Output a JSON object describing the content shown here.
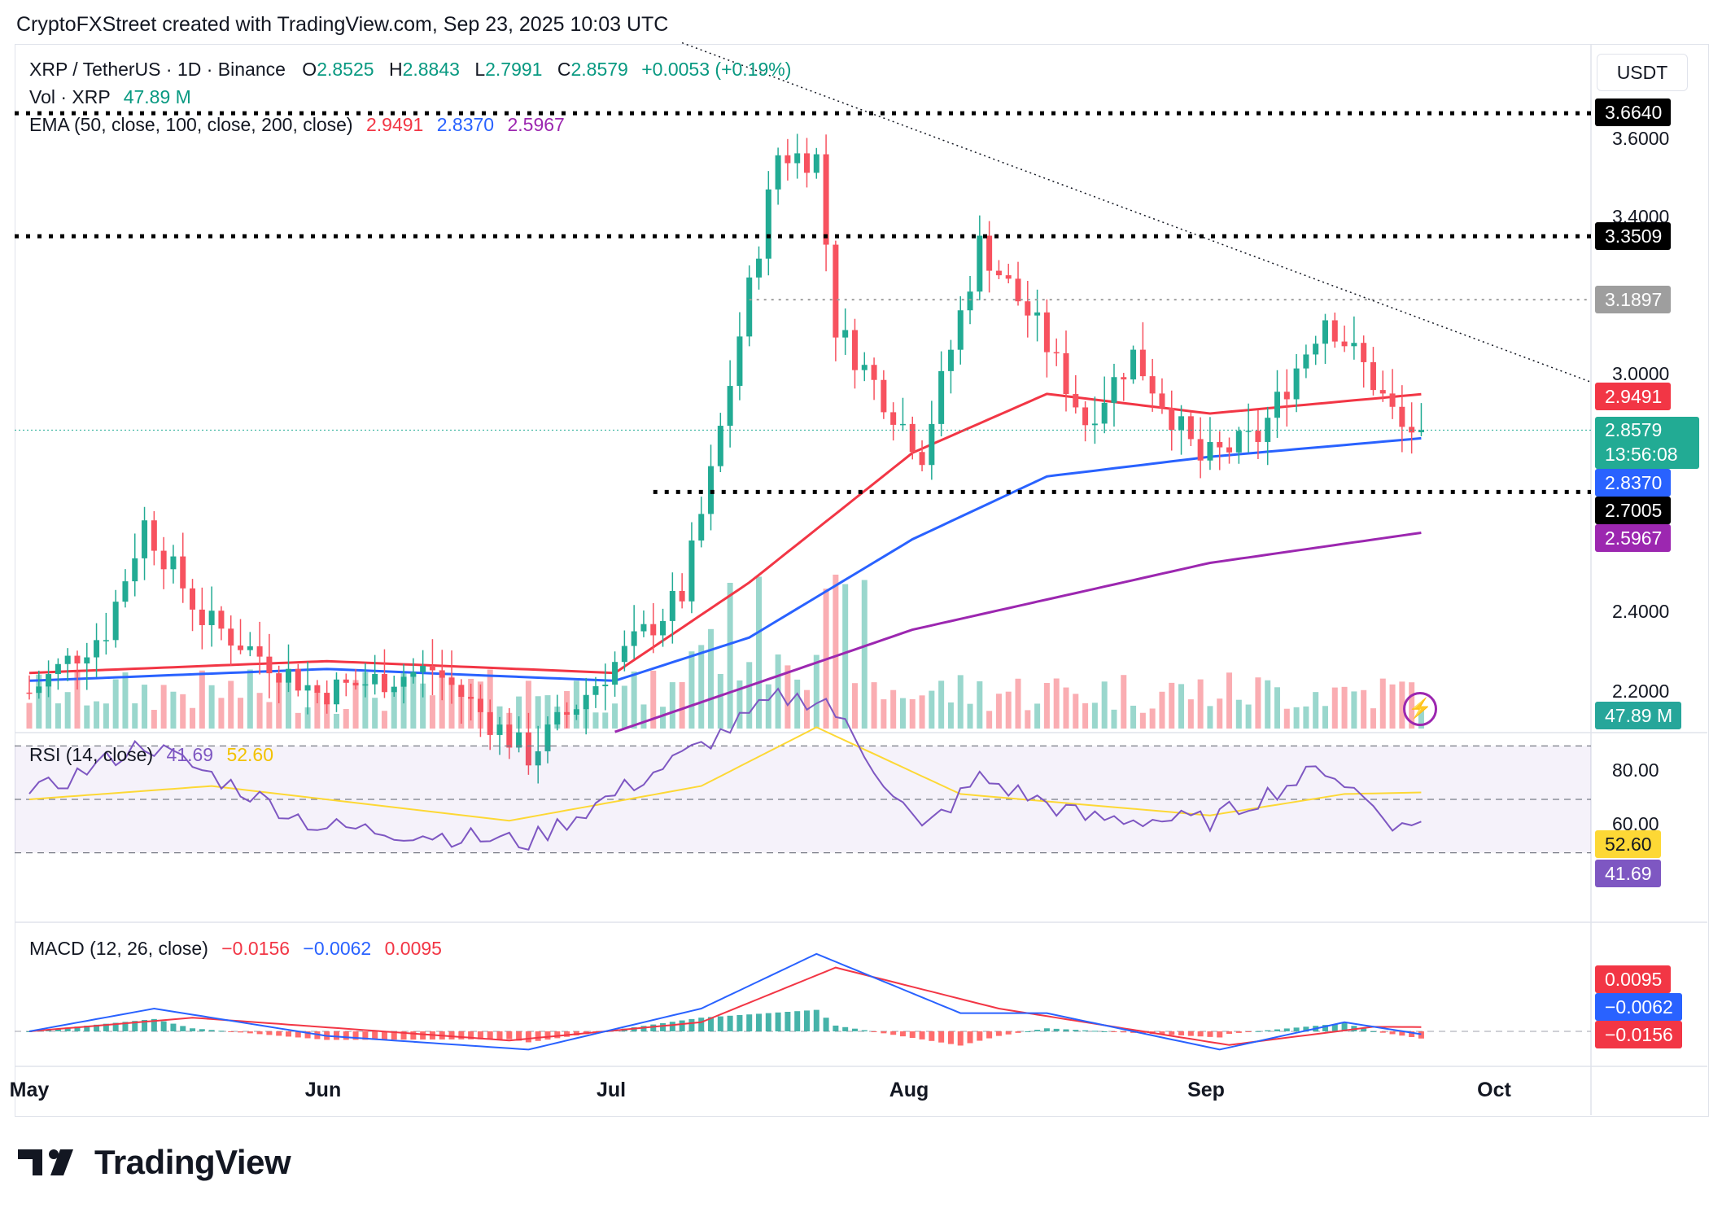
{
  "header": {
    "caption": "CryptoFXStreet created with TradingView.com, Sep 23, 2025 10:03 UTC"
  },
  "legend": {
    "symbol": "XRP / TetherUS · 1D · Binance",
    "o_label": "O",
    "o": "2.8525",
    "h_label": "H",
    "h": "2.8843",
    "l_label": "L",
    "l": "2.7991",
    "c_label": "C",
    "c": "2.8579",
    "change": "+0.0053 (+0.19%)",
    "vol_label": "Vol · XRP",
    "vol": "47.89 M",
    "ema_label": "EMA (50, close, 100, close, 200, close)",
    "ema50": "2.9491",
    "ema100": "2.8370",
    "ema200": "2.5967"
  },
  "currency": "USDT",
  "price_ticks": [
    "3.6000",
    "3.4000",
    "3.0000",
    "2.4000",
    "2.2000"
  ],
  "price_tags": {
    "res1": "3.6640",
    "res2": "3.3509",
    "res3": "3.1897",
    "ema50": "2.9491",
    "last": "2.8579",
    "countdown": "13:56:08",
    "ema100": "2.8370",
    "support": "2.7005",
    "ema200": "2.5967",
    "volume": "47.89 M"
  },
  "rsi": {
    "label": "RSI (14, close)",
    "value": "41.69",
    "ma": "52.60",
    "ticks": [
      "80.00",
      "60.00"
    ]
  },
  "macd": {
    "label": "MACD (12, 26, close)",
    "hist": "−0.0156",
    "macd": "−0.0062",
    "signal": "0.0095"
  },
  "x_axis": [
    "May",
    "Jun",
    "Jul",
    "Aug",
    "Sep",
    "Oct"
  ],
  "branding": {
    "logo_text": "TradingView"
  },
  "colors": {
    "up": "#22ab94",
    "down": "#f7525f",
    "ema50": "#f23645",
    "ema100": "#2962ff",
    "ema200": "#9c27b0",
    "rsi": "#7e57c2",
    "rsi_ma": "#fdd835",
    "macd": "#2962ff",
    "signal": "#f23645"
  },
  "chart_data": {
    "type": "candlestick",
    "symbol": "XRP / TetherUS",
    "interval": "1D",
    "exchange": "Binance",
    "x_range": [
      "2025-05-01",
      "2025-10-05"
    ],
    "y_range": [
      2.15,
      3.78
    ],
    "horizontal_levels": [
      {
        "value": 3.664,
        "style": "dotted-bold"
      },
      {
        "value": 3.3509,
        "style": "dotted-bold"
      },
      {
        "value": 3.1897,
        "style": "dotted-gray"
      },
      {
        "value": 2.7005,
        "style": "dotted-bold"
      }
    ],
    "trendline": {
      "from": [
        "2025-07-18",
        3.75
      ],
      "to": [
        "2025-10-04",
        2.95
      ],
      "style": "dotted"
    },
    "ohlc_keypoints": [
      [
        "2025-05-01",
        2.19
      ],
      [
        "2025-05-09",
        2.35
      ],
      [
        "2025-05-13",
        2.62
      ],
      [
        "2025-05-19",
        2.38
      ],
      [
        "2025-05-31",
        2.19
      ],
      [
        "2025-06-12",
        2.25
      ],
      [
        "2025-06-22",
        2.03
      ],
      [
        "2025-06-30",
        2.24
      ],
      [
        "2025-07-08",
        2.44
      ],
      [
        "2025-07-11",
        2.74
      ],
      [
        "2025-07-14",
        3.1
      ],
      [
        "2025-07-18",
        3.56
      ],
      [
        "2025-07-22",
        3.55
      ],
      [
        "2025-07-24",
        3.12
      ],
      [
        "2025-08-02",
        2.8
      ],
      [
        "2025-08-08",
        3.33
      ],
      [
        "2025-08-14",
        3.12
      ],
      [
        "2025-08-19",
        2.88
      ],
      [
        "2025-08-24",
        3.05
      ],
      [
        "2025-08-31",
        2.78
      ],
      [
        "2025-09-06",
        2.84
      ],
      [
        "2025-09-13",
        3.15
      ],
      [
        "2025-09-17",
        3.02
      ],
      [
        "2025-09-21",
        2.86
      ],
      [
        "2025-09-22",
        2.86
      ],
      [
        "2025-09-23",
        2.8579
      ]
    ],
    "ema50": [
      [
        "2025-05-01",
        2.24
      ],
      [
        "2025-06-01",
        2.27
      ],
      [
        "2025-07-01",
        2.24
      ],
      [
        "2025-07-15",
        2.47
      ],
      [
        "2025-08-01",
        2.8
      ],
      [
        "2025-08-15",
        2.95
      ],
      [
        "2025-09-01",
        2.9
      ],
      [
        "2025-09-23",
        2.9491
      ]
    ],
    "ema100": [
      [
        "2025-05-01",
        2.22
      ],
      [
        "2025-06-01",
        2.25
      ],
      [
        "2025-07-01",
        2.22
      ],
      [
        "2025-07-15",
        2.33
      ],
      [
        "2025-08-01",
        2.58
      ],
      [
        "2025-08-15",
        2.74
      ],
      [
        "2025-09-01",
        2.79
      ],
      [
        "2025-09-23",
        2.837
      ]
    ],
    "ema200": [
      [
        "2025-07-01",
        2.09
      ],
      [
        "2025-08-01",
        2.35
      ],
      [
        "2025-09-01",
        2.52
      ],
      [
        "2025-09-23",
        2.5967
      ]
    ],
    "rsi_range": [
      0,
      100
    ],
    "rsi_bands": [
      70,
      50,
      30
    ],
    "rsi": [
      [
        "2025-05-01",
        51
      ],
      [
        "2025-05-13",
        71
      ],
      [
        "2025-05-31",
        40
      ],
      [
        "2025-06-22",
        34
      ],
      [
        "2025-07-10",
        70
      ],
      [
        "2025-07-18",
        88
      ],
      [
        "2025-07-23",
        87
      ],
      [
        "2025-08-02",
        38
      ],
      [
        "2025-08-08",
        58
      ],
      [
        "2025-08-19",
        43
      ],
      [
        "2025-09-01",
        42
      ],
      [
        "2025-09-13",
        62
      ],
      [
        "2025-09-21",
        39
      ],
      [
        "2025-09-23",
        41.69
      ]
    ],
    "rsi_ma": [
      [
        "2025-05-01",
        50
      ],
      [
        "2025-05-20",
        55
      ],
      [
        "2025-06-20",
        42
      ],
      [
        "2025-07-10",
        55
      ],
      [
        "2025-07-22",
        77
      ],
      [
        "2025-08-06",
        52
      ],
      [
        "2025-09-01",
        44
      ],
      [
        "2025-09-15",
        52
      ],
      [
        "2025-09-23",
        52.6
      ]
    ],
    "macd": [
      [
        "2025-05-01",
        0.0
      ],
      [
        "2025-05-14",
        0.05
      ],
      [
        "2025-06-01",
        -0.01
      ],
      [
        "2025-06-22",
        -0.04
      ],
      [
        "2025-07-10",
        0.05
      ],
      [
        "2025-07-22",
        0.17
      ],
      [
        "2025-08-06",
        0.04
      ],
      [
        "2025-08-15",
        0.04
      ],
      [
        "2025-09-02",
        -0.04
      ],
      [
        "2025-09-15",
        0.02
      ],
      [
        "2025-09-23",
        -0.0062
      ]
    ],
    "signal": [
      [
        "2025-05-01",
        0.0
      ],
      [
        "2025-05-18",
        0.03
      ],
      [
        "2025-06-20",
        -0.02
      ],
      [
        "2025-07-10",
        0.02
      ],
      [
        "2025-07-24",
        0.14
      ],
      [
        "2025-08-10",
        0.05
      ],
      [
        "2025-09-03",
        -0.03
      ],
      [
        "2025-09-18",
        0.01
      ],
      [
        "2025-09-23",
        0.0095
      ]
    ]
  }
}
